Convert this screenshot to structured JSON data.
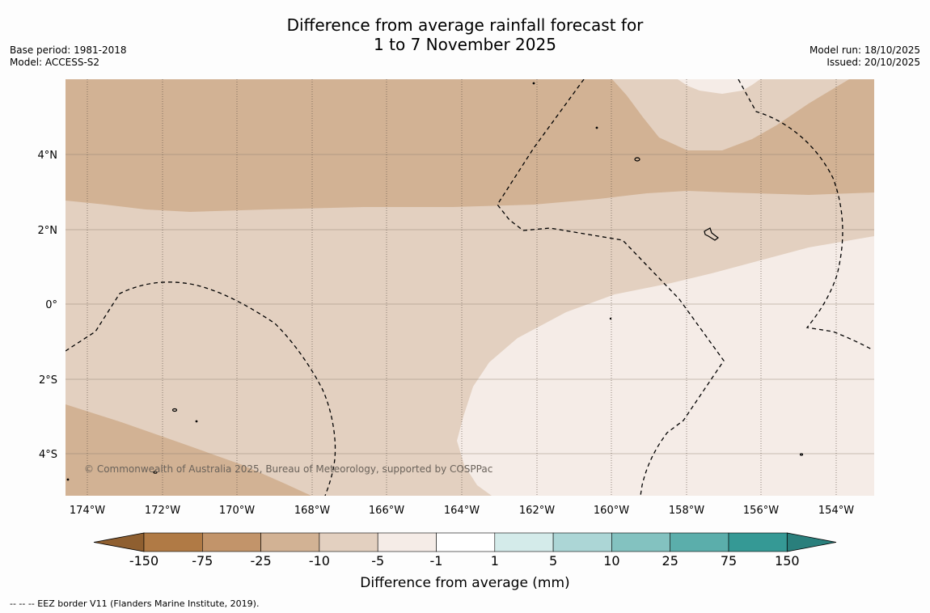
{
  "title": {
    "line1": "Difference from average rainfall forecast for",
    "line2": "1 to 7 November 2025"
  },
  "meta_left": {
    "base_period": "Base period: 1981-2018",
    "model": "Model: ACCESS-S2"
  },
  "meta_right": {
    "model_run": "Model run: 18/10/2025",
    "issued": "Issued: 20/10/2025"
  },
  "map": {
    "lon_labels": [
      "174°W",
      "172°W",
      "170°W",
      "168°W",
      "166°W",
      "164°W",
      "162°W",
      "160°W",
      "158°W",
      "156°W",
      "154°W"
    ],
    "lat_labels": [
      "4°N",
      "2°N",
      "0°",
      "2°S",
      "4°S"
    ],
    "copyright": "© Commonwealth of Australia 2025, Bureau of Meteorology, supported by COSPPac",
    "fill_colors": {
      "darker_tan": "#d2b294",
      "light_tan": "#e3d0c0",
      "pale": "#f5ece7"
    }
  },
  "colorbar": {
    "ticks": [
      "-150",
      "-75",
      "-25",
      "-10",
      "-5",
      "-1",
      "1",
      "5",
      "10",
      "25",
      "75",
      "150"
    ],
    "colors": [
      "#b07a45",
      "#c2946a",
      "#d2b294",
      "#e3d0c0",
      "#f5ece7",
      "#ffffff",
      "#d4ebea",
      "#acd6d6",
      "#83c2c0",
      "#5baeab",
      "#359995",
      "#2a7f7c"
    ],
    "label": "Difference from average (mm)"
  },
  "footnote": "-- -- -- EEZ border V11 (Flanders Marine Institute, 2019)."
}
